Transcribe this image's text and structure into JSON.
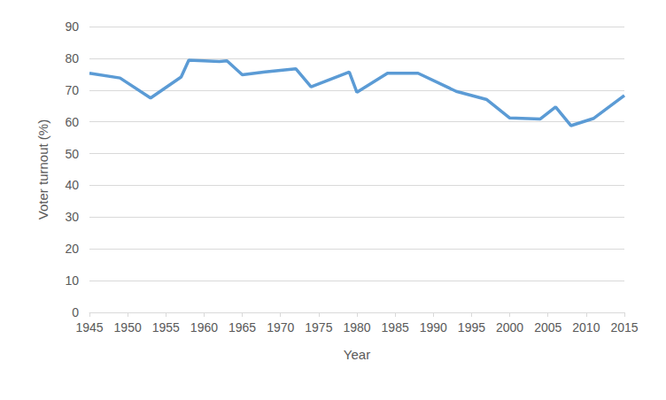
{
  "chart_data": {
    "type": "line",
    "xlabel": "Year",
    "ylabel": "Voter turnout (%)",
    "x": [
      1945,
      1949,
      1953,
      1957,
      1958,
      1962,
      1963,
      1965,
      1968,
      1972,
      1974,
      1979,
      1980,
      1984,
      1988,
      1993,
      1997,
      2000,
      2004,
      2006,
      2008,
      2011,
      2015
    ],
    "values": [
      75.3,
      73.8,
      67.5,
      74.1,
      79.4,
      79.0,
      79.2,
      74.8,
      75.7,
      76.7,
      71.0,
      75.7,
      69.3,
      75.3,
      75.3,
      69.6,
      67.0,
      61.2,
      60.9,
      64.7,
      58.8,
      61.1,
      68.3
    ],
    "color": "#5b9bd5",
    "xlim": [
      1945,
      2015
    ],
    "xticks": [
      1945,
      1950,
      1955,
      1960,
      1965,
      1970,
      1975,
      1980,
      1985,
      1990,
      1995,
      2000,
      2005,
      2010,
      2015
    ],
    "ylim": [
      0,
      90
    ],
    "yticks": [
      0,
      10,
      20,
      30,
      40,
      50,
      60,
      70,
      80,
      90
    ],
    "grid": true
  }
}
